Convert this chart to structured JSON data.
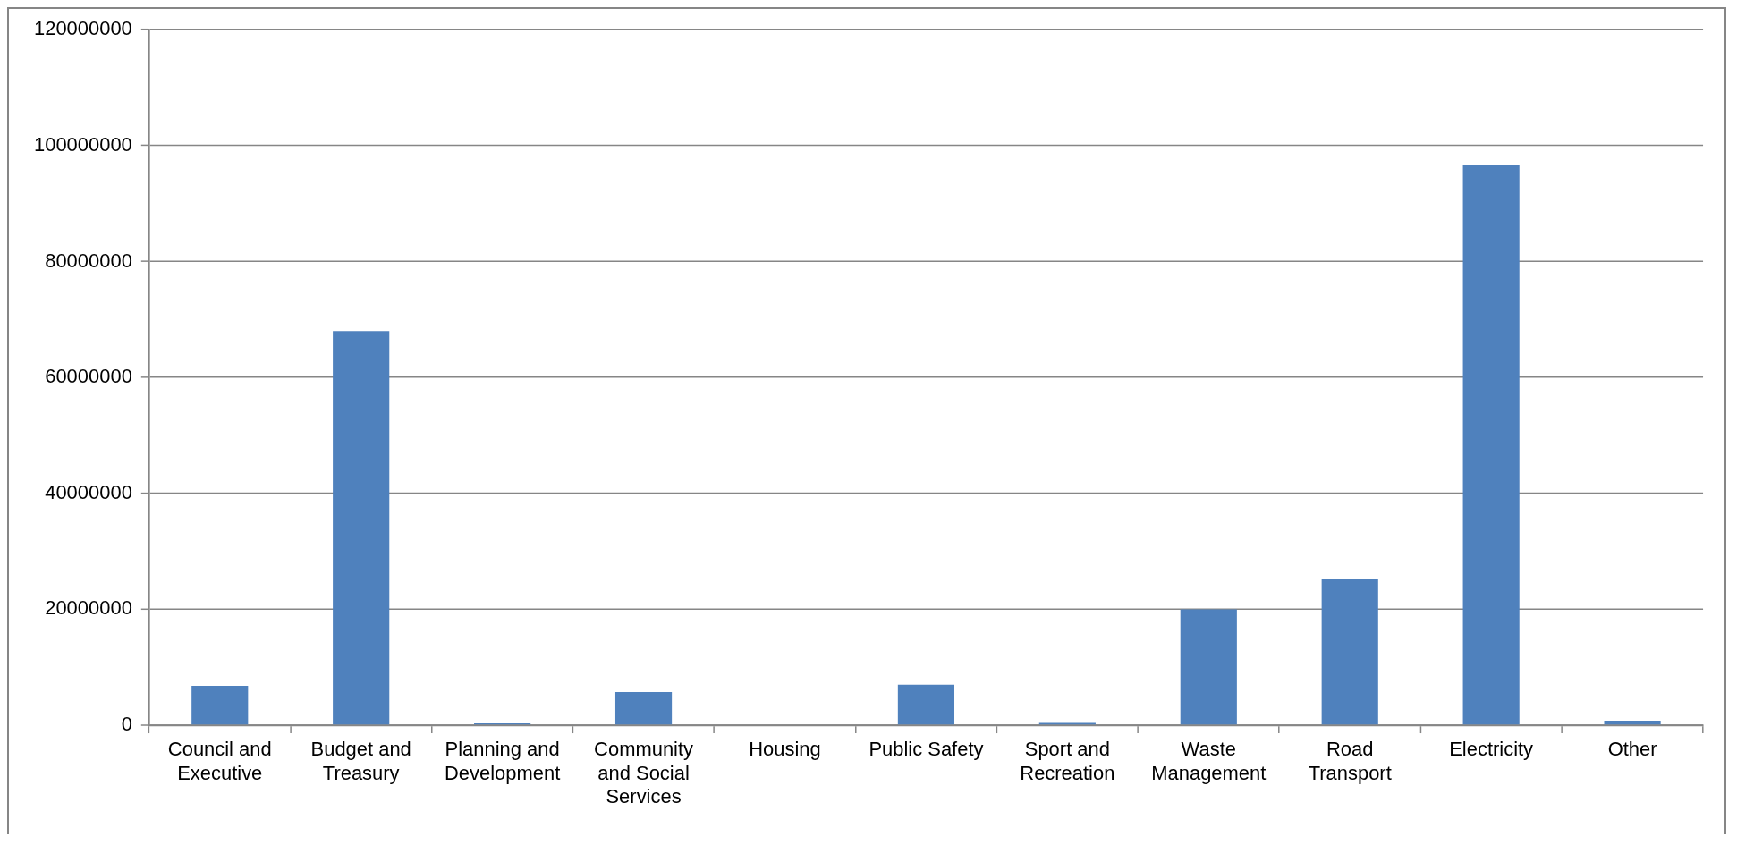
{
  "chart_data": {
    "type": "bar",
    "categories": [
      "Council and Executive",
      "Budget and Treasury",
      "Planning and Development",
      "Community and Social Services",
      "Housing",
      "Public Safety",
      "Sport and Recreation",
      "Waste Management",
      "Road Transport",
      "Electricity",
      "Other"
    ],
    "values": [
      6800000,
      68000000,
      300000,
      5700000,
      0,
      7000000,
      400000,
      20000000,
      25300000,
      96600000,
      800000
    ],
    "color": "#4f81bd",
    "ylim": [
      0,
      120000000
    ],
    "yticks": [
      0,
      20000000,
      40000000,
      60000000,
      80000000,
      100000000,
      120000000
    ],
    "grid": "y"
  }
}
